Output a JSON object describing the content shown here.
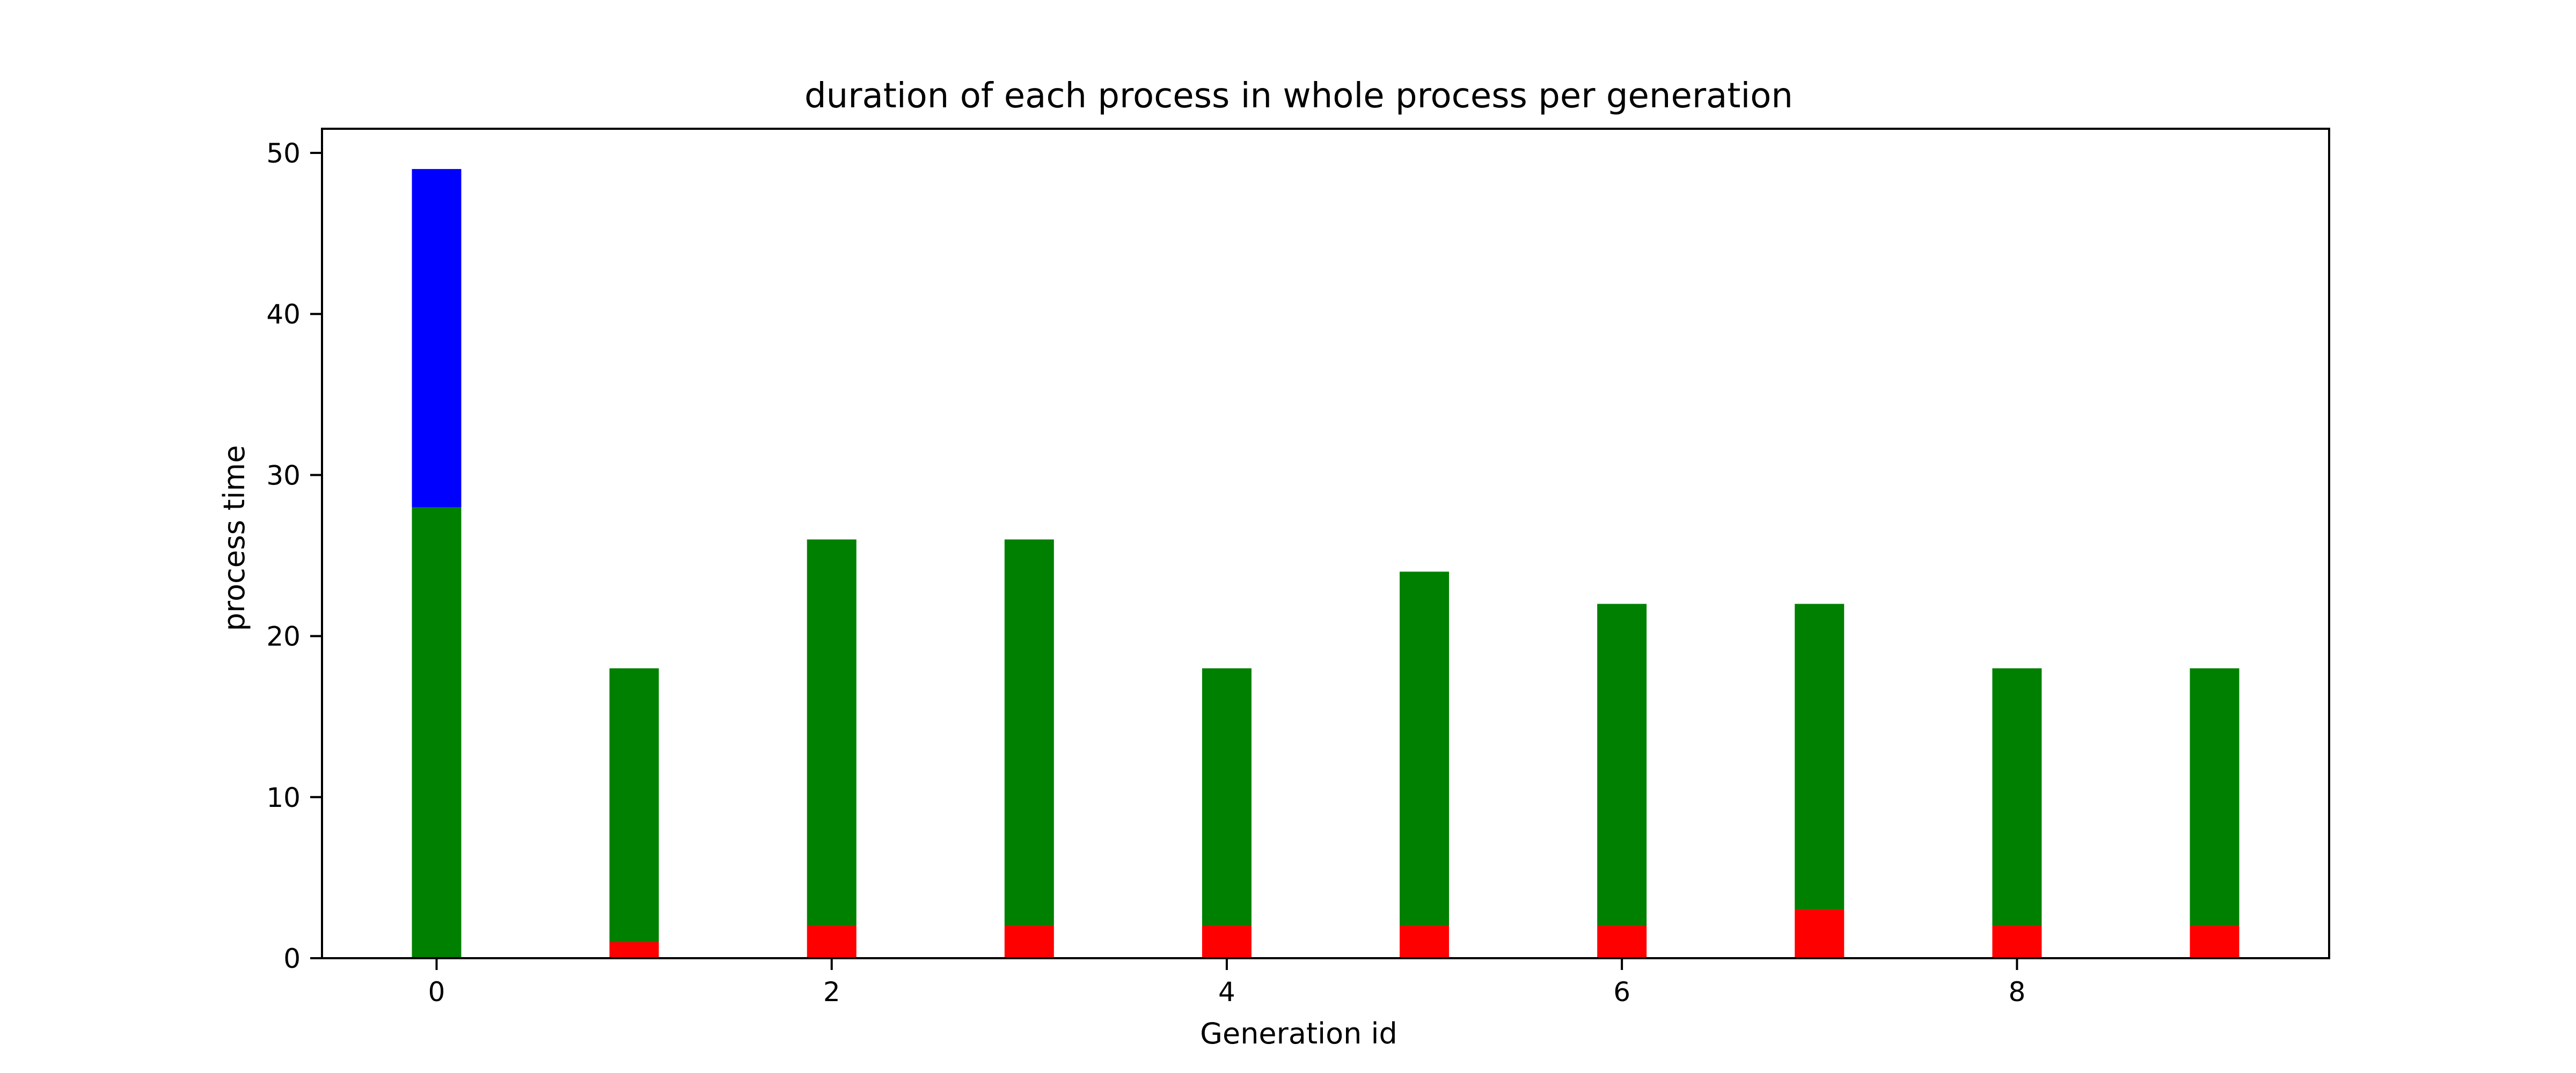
{
  "chart_data": {
    "type": "bar",
    "stacked": true,
    "title": "duration of each process in whole process per generation",
    "xlabel": "Generation id",
    "ylabel": "process time",
    "x": [
      0,
      1,
      2,
      3,
      4,
      5,
      6,
      7,
      8,
      9
    ],
    "xlim": [
      -0.58,
      9.58
    ],
    "ylim": [
      0,
      51.5
    ],
    "xticks": [
      0,
      2,
      4,
      6,
      8
    ],
    "yticks": [
      0,
      10,
      20,
      30,
      40,
      50
    ],
    "grid": false,
    "series": [
      {
        "color": "#ff0000",
        "values": [
          0,
          1,
          2,
          2,
          2,
          2,
          2,
          3,
          2,
          2
        ]
      },
      {
        "color": "#008000",
        "values": [
          28,
          17,
          24,
          24,
          16,
          22,
          20,
          19,
          16,
          16
        ]
      },
      {
        "color": "#0000ff",
        "values": [
          21,
          0,
          0,
          0,
          0,
          0,
          0,
          0,
          0,
          0
        ]
      }
    ]
  }
}
